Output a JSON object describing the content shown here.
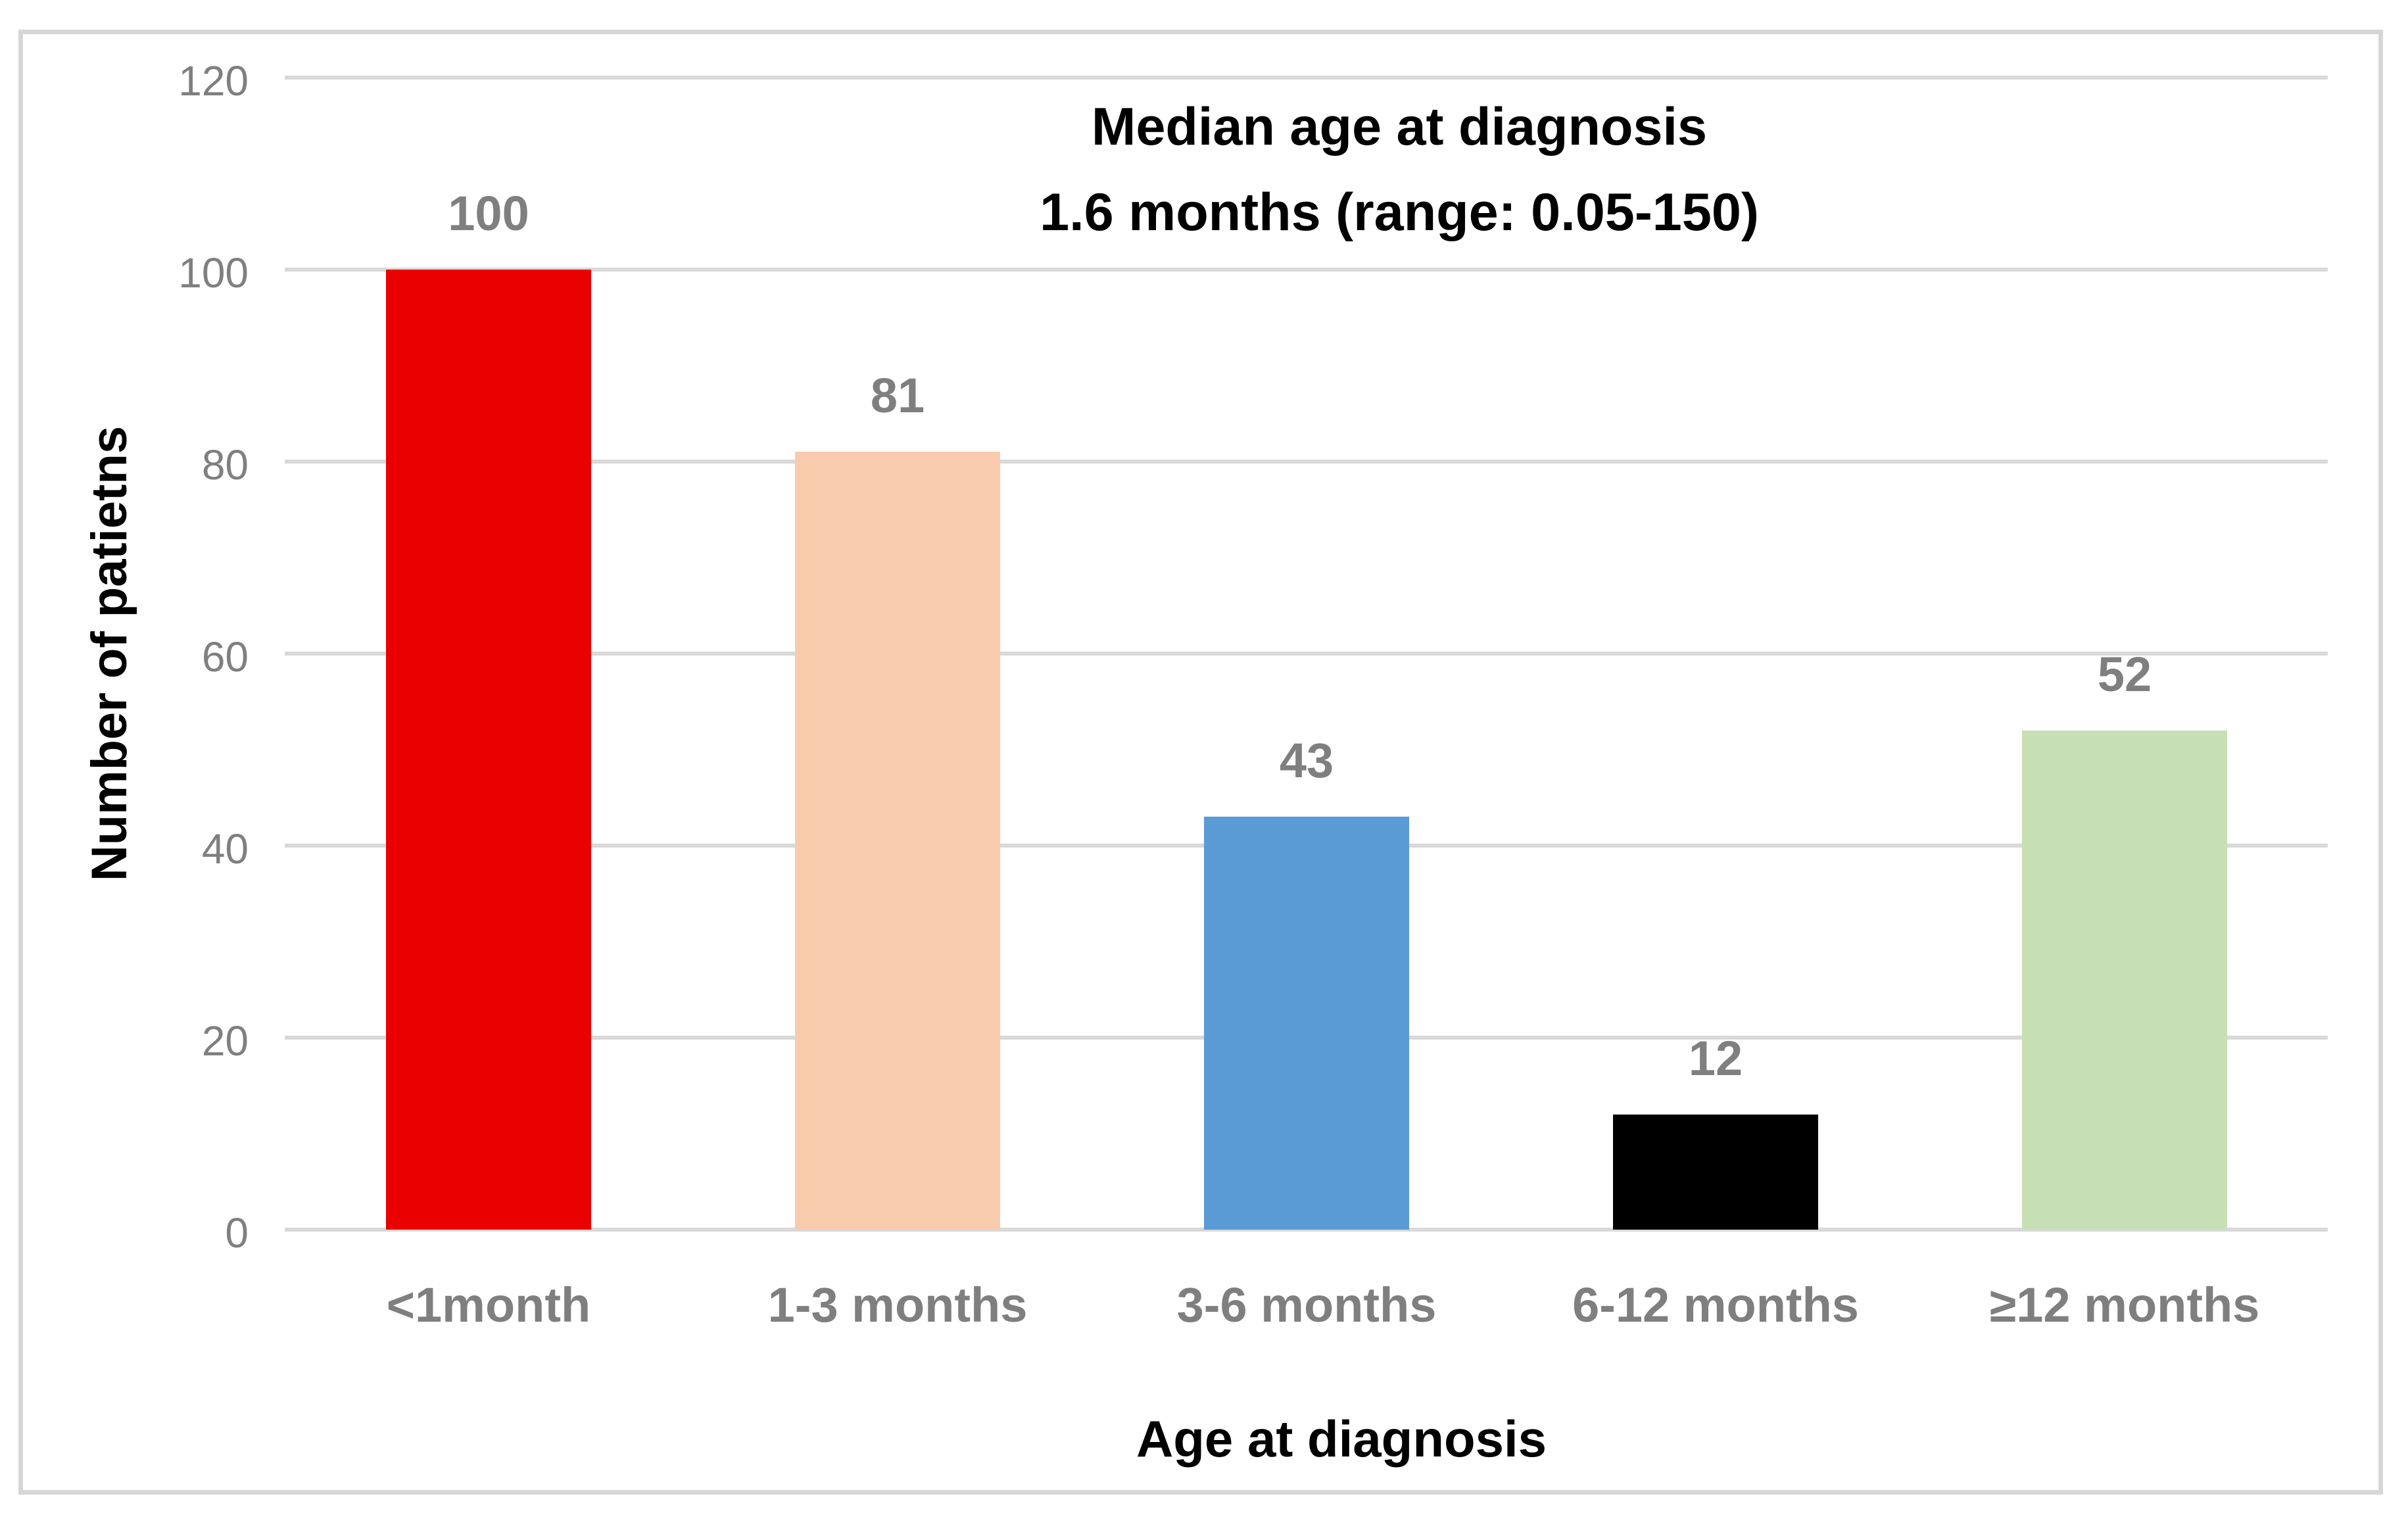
{
  "chart_data": {
    "type": "bar",
    "title": "Median age at diagnosis",
    "subtitle": "1.6 months (range: 0.05-150)",
    "xlabel": "Age at diagnosis",
    "ylabel": "Number of patietns",
    "categories": [
      "<1month",
      "1-3 months",
      "3-6 months",
      "6-12 months",
      "≥12 months"
    ],
    "values": [
      100,
      81,
      43,
      12,
      52
    ],
    "bar_colors": [
      "#EB0000",
      "#F8CBAD",
      "#5B9BD5",
      "#000000",
      "#C6E0B4"
    ],
    "ylim": [
      0,
      120
    ],
    "yticks": [
      0,
      20,
      40,
      60,
      80,
      100,
      120
    ],
    "grid": true,
    "legend": "none",
    "colors": {
      "grid": "#D9D9D9",
      "tick_label": "#7F7F7F",
      "data_label": "#7F7F7F",
      "category_label": "#7F7F7F",
      "title_text": "#000000",
      "frame_border": "#D6D6D6",
      "background": "#FFFFFF"
    }
  }
}
